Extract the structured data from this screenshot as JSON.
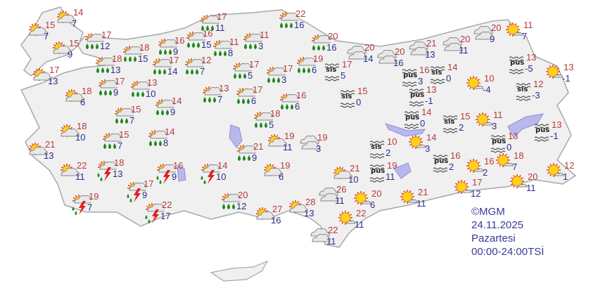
{
  "colors": {
    "land": "#f0f0f0",
    "border": "#a8a8a8",
    "lake": "#b8b8ee",
    "high": "#b83a3a",
    "low": "#2c2c8c",
    "footer": "#3a3a9c"
  },
  "stations": [
    {
      "icon": "partly-cloudy",
      "hi": "14",
      "lo": "7"
    },
    {
      "icon": "partly-cloudy",
      "hi": "15",
      "lo": "7"
    },
    {
      "icon": "partly-cloudy",
      "hi": "15",
      "lo": "9"
    },
    {
      "icon": "rain",
      "hi": "17",
      "lo": "12"
    },
    {
      "icon": "rain",
      "hi": "18",
      "lo": "15"
    },
    {
      "icon": "rain",
      "hi": "18",
      "lo": "13"
    },
    {
      "icon": "rain",
      "hi": "16",
      "lo": "9"
    },
    {
      "icon": "rain",
      "hi": "17",
      "lo": "14"
    },
    {
      "icon": "rain",
      "hi": "16",
      "lo": "15"
    },
    {
      "icon": "rain",
      "hi": "17",
      "lo": "11"
    },
    {
      "icon": "rain",
      "hi": "11",
      "lo": "8"
    },
    {
      "icon": "rain",
      "hi": "12",
      "lo": "7"
    },
    {
      "icon": "rain",
      "hi": "11",
      "lo": "3"
    },
    {
      "icon": "rain",
      "hi": "22",
      "lo": "16"
    },
    {
      "icon": "rain",
      "hi": "20",
      "lo": "16"
    },
    {
      "icon": "rain",
      "hi": "17",
      "lo": "5"
    },
    {
      "icon": "rain",
      "hi": "17",
      "lo": "3"
    },
    {
      "icon": "rain",
      "hi": "19",
      "lo": "6"
    },
    {
      "icon": "fog",
      "label": "sis",
      "hi": "17",
      "lo": "5"
    },
    {
      "icon": "cloudy",
      "hi": "20",
      "lo": "14"
    },
    {
      "icon": "cloudy",
      "hi": "20",
      "lo": "16"
    },
    {
      "icon": "cloudy",
      "hi": "21",
      "lo": "13"
    },
    {
      "icon": "cloudy",
      "hi": "20",
      "lo": "11"
    },
    {
      "icon": "cloudy",
      "hi": "20",
      "lo": "9"
    },
    {
      "icon": "sunny-cloud",
      "hi": "11",
      "lo": "7"
    },
    {
      "icon": "haze",
      "label": "pus",
      "hi": "16",
      "lo": "3"
    },
    {
      "icon": "fog",
      "label": "sis",
      "hi": "14",
      "lo": "0"
    },
    {
      "icon": "fog",
      "label": "sis",
      "hi": "15",
      "lo": "0"
    },
    {
      "icon": "haze",
      "label": "pus",
      "hi": "13",
      "lo": "-1"
    },
    {
      "icon": "sunny-cloud",
      "hi": "10",
      "lo": "-4"
    },
    {
      "icon": "haze",
      "label": "pus",
      "hi": "13",
      "lo": "-5"
    },
    {
      "icon": "sunny-cloud",
      "hi": "13",
      "lo": "-1"
    },
    {
      "icon": "fog",
      "label": "sis",
      "hi": "12",
      "lo": "-3"
    },
    {
      "icon": "haze",
      "label": "pus",
      "hi": "14",
      "lo": "0"
    },
    {
      "icon": "fog",
      "label": "sis",
      "hi": "15",
      "lo": "2"
    },
    {
      "icon": "sunny-cloud",
      "hi": "11",
      "lo": "3"
    },
    {
      "icon": "haze",
      "label": "pus",
      "hi": "13",
      "lo": "0"
    },
    {
      "icon": "haze",
      "label": "pus",
      "hi": "13",
      "lo": "-1"
    },
    {
      "icon": "partly-cloudy",
      "hi": "17",
      "lo": "13"
    },
    {
      "icon": "partly-cloudy",
      "hi": "18",
      "lo": "6"
    },
    {
      "icon": "rain",
      "hi": "17",
      "lo": "9"
    },
    {
      "icon": "rain",
      "hi": "13",
      "lo": "10"
    },
    {
      "icon": "rain",
      "hi": "14",
      "lo": "9"
    },
    {
      "icon": "rain",
      "hi": "15",
      "lo": "7"
    },
    {
      "icon": "rain",
      "hi": "13",
      "lo": "7"
    },
    {
      "icon": "rain",
      "hi": "17",
      "lo": "6"
    },
    {
      "icon": "rain",
      "hi": "16",
      "lo": "6"
    },
    {
      "icon": "rain",
      "hi": "18",
      "lo": "5"
    },
    {
      "icon": "partly-cloudy",
      "hi": "18",
      "lo": "10"
    },
    {
      "icon": "partly-cloudy",
      "hi": "21",
      "lo": "13"
    },
    {
      "icon": "rain",
      "hi": "15",
      "lo": "7"
    },
    {
      "icon": "rain",
      "hi": "14",
      "lo": "8"
    },
    {
      "icon": "partly-cloudy",
      "hi": "22",
      "lo": "11"
    },
    {
      "icon": "thunderstorm",
      "hi": "18",
      "lo": "13"
    },
    {
      "icon": "thunderstorm",
      "hi": "16",
      "lo": "9"
    },
    {
      "icon": "thunderstorm",
      "hi": "17",
      "lo": "9"
    },
    {
      "icon": "thunderstorm",
      "hi": "19",
      "lo": "7"
    },
    {
      "icon": "thunderstorm",
      "hi": "22",
      "lo": "17"
    },
    {
      "icon": "thunderstorm",
      "hi": "14",
      "lo": "10"
    },
    {
      "icon": "partly-cloudy",
      "hi": "19",
      "lo": "11"
    },
    {
      "icon": "cloudy",
      "hi": "19",
      "lo": "3"
    },
    {
      "icon": "rain",
      "hi": "21",
      "lo": "9"
    },
    {
      "icon": "partly-cloudy",
      "hi": "19",
      "lo": "6"
    },
    {
      "icon": "rain",
      "hi": "20",
      "lo": "12"
    },
    {
      "icon": "partly-cloudy",
      "hi": "27",
      "lo": "16"
    },
    {
      "icon": "partly-cloudy",
      "hi": "28",
      "lo": "13"
    },
    {
      "icon": "cloudy",
      "hi": "26",
      "lo": "11"
    },
    {
      "icon": "cloudy",
      "hi": "22",
      "lo": "11"
    },
    {
      "icon": "partly-cloudy",
      "hi": "21",
      "lo": "10"
    },
    {
      "icon": "sunny-cloud",
      "hi": "20",
      "lo": "6"
    },
    {
      "icon": "sunny-cloud",
      "hi": "22",
      "lo": "11"
    },
    {
      "icon": "fog",
      "label": "sis",
      "hi": "10",
      "lo": "2"
    },
    {
      "icon": "haze",
      "label": "pus",
      "hi": "19",
      "lo": "11"
    },
    {
      "icon": "sunny-cloud",
      "hi": "14",
      "lo": "3"
    },
    {
      "icon": "haze",
      "label": "pus",
      "hi": "16",
      "lo": "2"
    },
    {
      "icon": "sunny-cloud",
      "hi": "16",
      "lo": "2"
    },
    {
      "icon": "sunny-cloud",
      "hi": "18",
      "lo": "7"
    },
    {
      "icon": "sunny-cloud",
      "hi": "21",
      "lo": "11"
    },
    {
      "icon": "sunny-cloud",
      "hi": "17",
      "lo": "12"
    },
    {
      "icon": "sunny-cloud",
      "hi": "20",
      "lo": "11"
    },
    {
      "icon": "sunny-cloud",
      "hi": "12",
      "lo": "1"
    }
  ],
  "footer": {
    "copyright": "©MGM",
    "date": "24.11.2025",
    "weekday": "Pazartesi",
    "period": "00:00-24:00TSİ"
  }
}
